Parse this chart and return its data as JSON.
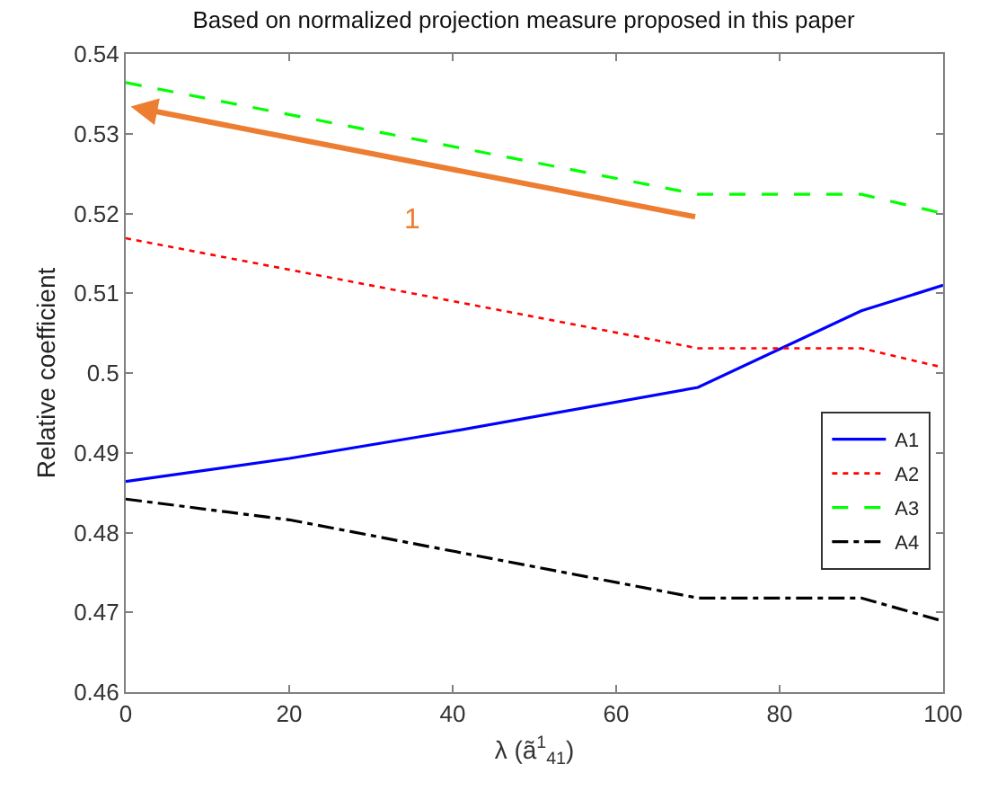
{
  "chart_data": {
    "type": "line",
    "title": "Based on normalized projection measure proposed in this paper",
    "xlabel": "λ (ã$^{1}$$_{41}$)",
    "ylabel": "Relative coefficient",
    "xlim": [
      0,
      100
    ],
    "xticks": [
      0,
      20,
      40,
      60,
      80,
      100
    ],
    "ylim": [
      0.46,
      0.54
    ],
    "yticks": [
      0.46,
      0.47,
      0.48,
      0.49,
      0.5,
      0.51,
      0.52,
      0.53,
      0.54
    ],
    "series": [
      {
        "name": "A1",
        "color": "#0000ff",
        "line_style": "solid",
        "x": [
          0,
          20,
          40,
          70,
          90,
          100
        ],
        "values": [
          0.4864,
          0.4893,
          0.4927,
          0.4982,
          0.5078,
          0.511
        ]
      },
      {
        "name": "A2",
        "color": "#ff0000",
        "line_style": "dotted",
        "x": [
          0,
          70,
          90,
          100
        ],
        "values": [
          0.5169,
          0.5031,
          0.5031,
          0.5007
        ]
      },
      {
        "name": "A3",
        "color": "#00ff00",
        "line_style": "dashed",
        "x": [
          0,
          70,
          90,
          100
        ],
        "values": [
          0.5364,
          0.5224,
          0.5224,
          0.52
        ]
      },
      {
        "name": "A4",
        "color": "#000000",
        "line_style": "dashdot",
        "x": [
          0,
          20,
          70,
          90,
          100
        ],
        "values": [
          0.4842,
          0.4816,
          0.4718,
          0.4718,
          0.4689
        ]
      }
    ],
    "annotations": [
      "1"
    ],
    "legend": "right",
    "marker": "none"
  }
}
